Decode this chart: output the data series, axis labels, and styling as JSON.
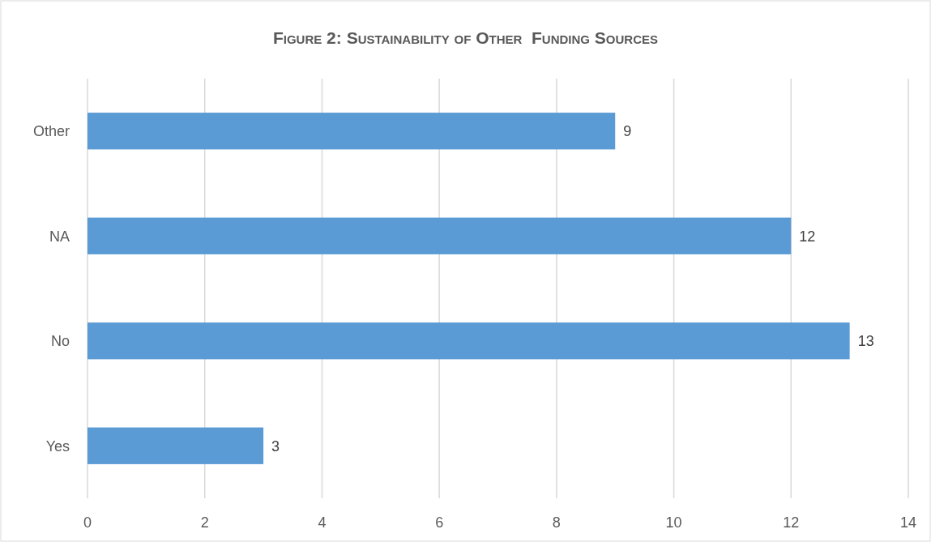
{
  "chart_data": {
    "type": "bar",
    "orientation": "horizontal",
    "title": "Figure 2: Sustainability of Other  Funding Sources",
    "categories": [
      "Other",
      "NA",
      "No",
      "Yes"
    ],
    "values": [
      9,
      12,
      13,
      3
    ],
    "color": "#5b9bd5",
    "xlim": [
      0,
      14
    ],
    "xticks": [
      0,
      2,
      4,
      6,
      8,
      10,
      12,
      14
    ],
    "grid": "x",
    "data_labels": true
  }
}
